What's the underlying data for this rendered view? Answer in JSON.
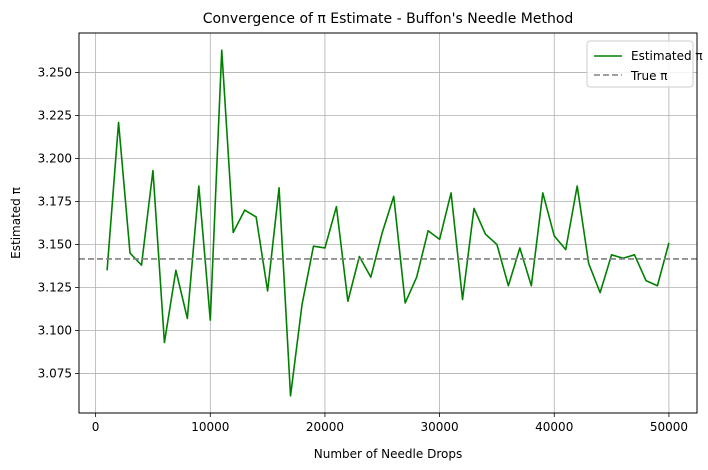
{
  "chart_data": {
    "type": "line",
    "title": "Convergence of π Estimate - Buffon's Needle Method",
    "xlabel": "Number of Needle Drops",
    "ylabel": "Estimated π",
    "xlim": [
      -1450,
      52450
    ],
    "ylim": [
      3.052,
      3.273
    ],
    "xticks": [
      0,
      10000,
      20000,
      30000,
      40000,
      50000
    ],
    "xtick_labels": [
      "0",
      "10000",
      "20000",
      "30000",
      "40000",
      "50000"
    ],
    "yticks": [
      3.075,
      3.1,
      3.125,
      3.15,
      3.175,
      3.2,
      3.225,
      3.25
    ],
    "ytick_labels": [
      "3.075",
      "3.100",
      "3.125",
      "3.150",
      "3.175",
      "3.200",
      "3.225",
      "3.250"
    ],
    "grid": true,
    "legend_position": "top-right",
    "series": [
      {
        "name": "Estimated π",
        "color": "#008000",
        "style": "solid",
        "x": [
          1000,
          2000,
          3000,
          4000,
          5000,
          6000,
          7000,
          8000,
          9000,
          10000,
          11000,
          12000,
          13000,
          14000,
          15000,
          16000,
          17000,
          18000,
          19000,
          20000,
          21000,
          22000,
          23000,
          24000,
          25000,
          26000,
          27000,
          28000,
          29000,
          30000,
          31000,
          32000,
          33000,
          34000,
          35000,
          36000,
          37000,
          38000,
          39000,
          40000,
          41000,
          42000,
          43000,
          44000,
          45000,
          46000,
          47000,
          48000,
          49000,
          50000
        ],
        "y": [
          3.135,
          3.221,
          3.145,
          3.138,
          3.193,
          3.093,
          3.135,
          3.107,
          3.184,
          3.106,
          3.263,
          3.157,
          3.17,
          3.166,
          3.123,
          3.183,
          3.062,
          3.115,
          3.149,
          3.148,
          3.172,
          3.117,
          3.143,
          3.131,
          3.157,
          3.178,
          3.116,
          3.131,
          3.158,
          3.153,
          3.18,
          3.118,
          3.171,
          3.156,
          3.15,
          3.126,
          3.148,
          3.126,
          3.18,
          3.155,
          3.147,
          3.184,
          3.139,
          3.122,
          3.144,
          3.142,
          3.144,
          3.129,
          3.126,
          3.151
        ]
      },
      {
        "name": "True π",
        "color": "#808080",
        "style": "dashed",
        "constant_y": 3.14159
      }
    ]
  }
}
